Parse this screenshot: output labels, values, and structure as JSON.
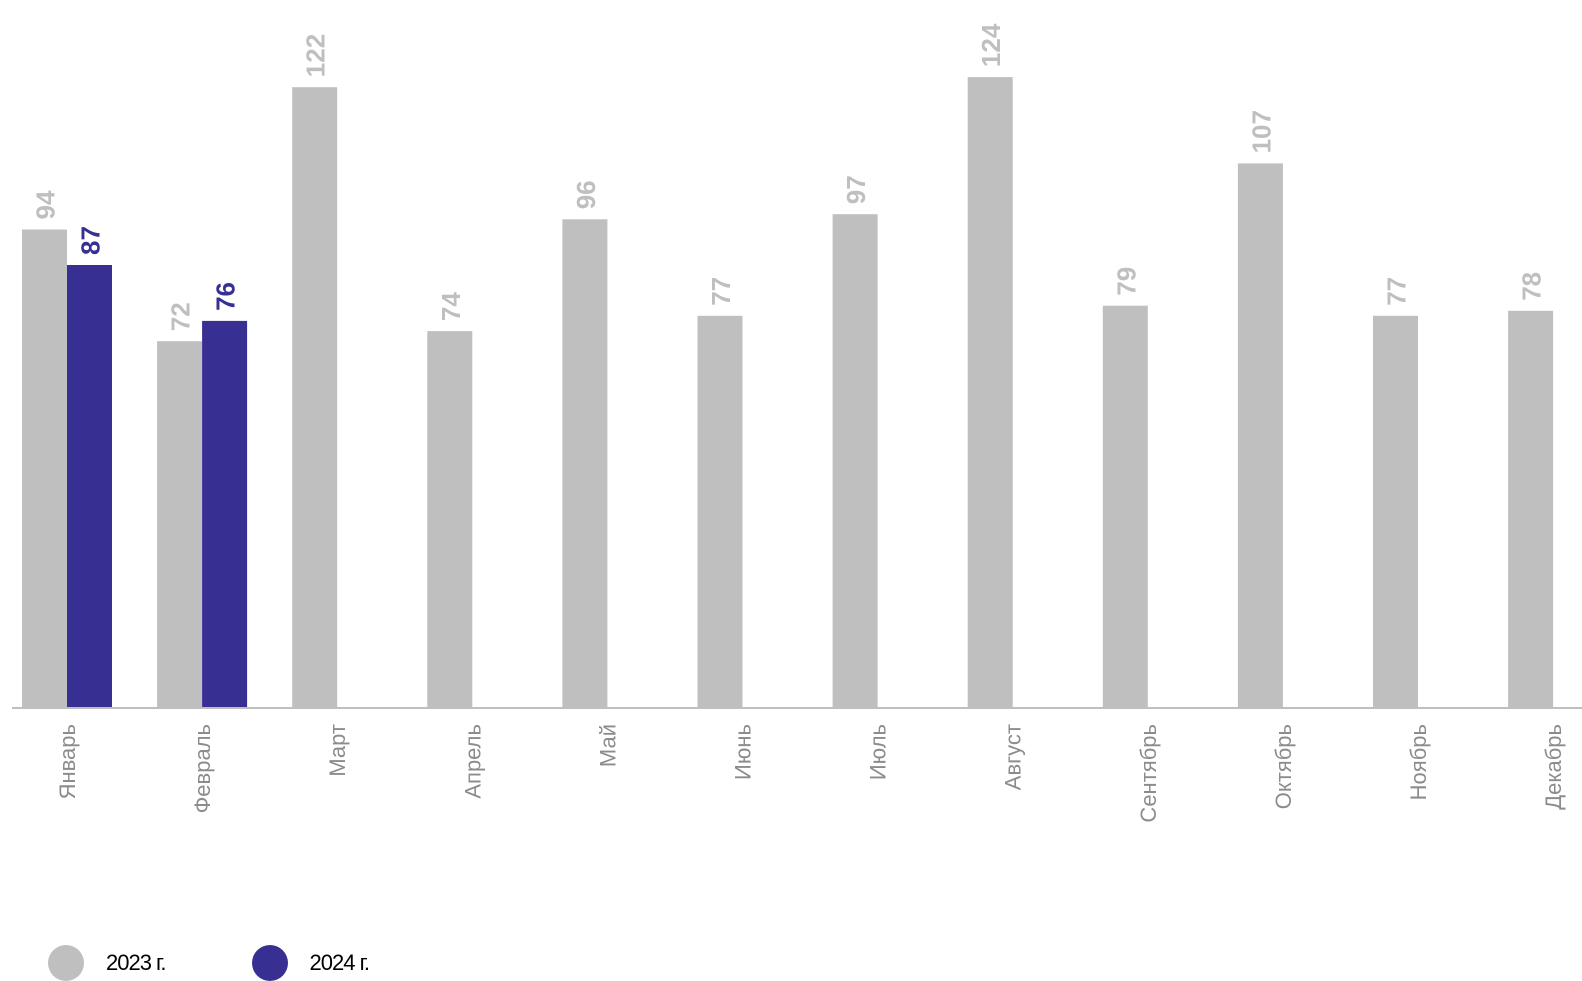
{
  "chart_data": {
    "type": "bar",
    "categories": [
      "Январь",
      "Февраль",
      "Март",
      "Апрель",
      "Май",
      "Июнь",
      "Июль",
      "Август",
      "Сентябрь",
      "Октябрь",
      "Ноябрь",
      "Декабрь"
    ],
    "series": [
      {
        "name": "2023 г.",
        "color": "#bfbfbf",
        "values": [
          94,
          72,
          122,
          74,
          96,
          77,
          97,
          124,
          79,
          107,
          77,
          78
        ]
      },
      {
        "name": "2024 г.",
        "color": "#372f92",
        "values": [
          87,
          76,
          null,
          null,
          null,
          null,
          null,
          null,
          null,
          null,
          null,
          null
        ]
      }
    ],
    "ylim": [
      0,
      124
    ],
    "grid": false,
    "legend_position": "bottom-left",
    "data_labels": true
  }
}
